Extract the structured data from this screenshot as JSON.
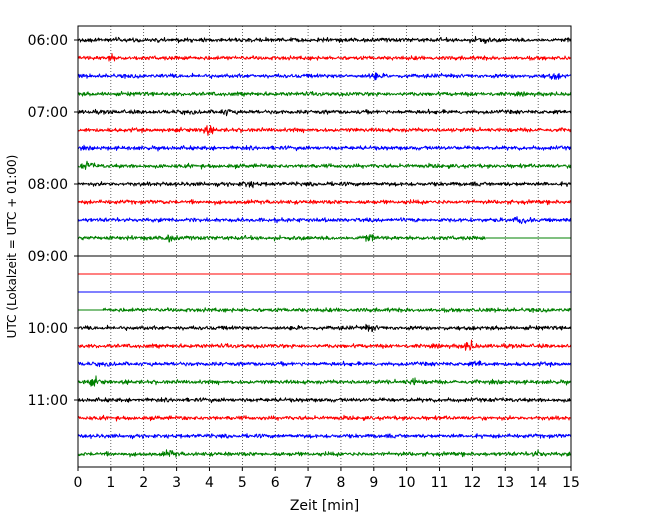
{
  "chart_data": {
    "type": "line",
    "title": "",
    "xlabel": "Zeit  [min]",
    "ylabel": "UTC (Lokalzeit = UTC + 01:00)",
    "xlim": [
      0,
      15
    ],
    "x_ticks": [
      0,
      1,
      2,
      3,
      4,
      5,
      6,
      7,
      8,
      9,
      10,
      11,
      12,
      13,
      14,
      15
    ],
    "x_tick_labels": [
      "0",
      "1",
      "2",
      "3",
      "4",
      "5",
      "6",
      "7",
      "8",
      "9",
      "10",
      "11",
      "12",
      "13",
      "14",
      "15"
    ],
    "y_tick_labels": [
      "06:00",
      "07:00",
      "08:00",
      "09:00",
      "10:00",
      "11:00"
    ],
    "vertical_grid": true,
    "trace_interval_min": 15,
    "color_cycle": [
      "#000000",
      "#ff0000",
      "#0000ff",
      "#008000"
    ],
    "traces": [
      {
        "start": "06:00",
        "color": "#000000",
        "data_from_min": 0,
        "data_to_min": 15,
        "events": [
          {
            "t": 12.3,
            "amp": 1.2
          }
        ]
      },
      {
        "start": "06:15",
        "color": "#ff0000",
        "data_from_min": 0,
        "data_to_min": 15,
        "events": [
          {
            "t": 1.0,
            "amp": 1.1
          }
        ]
      },
      {
        "start": "06:30",
        "color": "#0000ff",
        "data_from_min": 0,
        "data_to_min": 15,
        "events": [
          {
            "t": 9.0,
            "amp": 1.1
          },
          {
            "t": 14.5,
            "amp": 1.0
          }
        ]
      },
      {
        "start": "06:45",
        "color": "#008000",
        "data_from_min": 0,
        "data_to_min": 15,
        "events": []
      },
      {
        "start": "07:00",
        "color": "#000000",
        "data_from_min": 0,
        "data_to_min": 15,
        "events": [
          {
            "t": 4.5,
            "amp": 1.0
          }
        ]
      },
      {
        "start": "07:15",
        "color": "#ff0000",
        "data_from_min": 0,
        "data_to_min": 15,
        "events": [
          {
            "t": 3.9,
            "amp": 1.8
          }
        ]
      },
      {
        "start": "07:30",
        "color": "#0000ff",
        "data_from_min": 0,
        "data_to_min": 15,
        "events": []
      },
      {
        "start": "07:45",
        "color": "#008000",
        "data_from_min": 0,
        "data_to_min": 15,
        "events": [
          {
            "t": 0.3,
            "amp": 1.3
          }
        ]
      },
      {
        "start": "08:00",
        "color": "#000000",
        "data_from_min": 0,
        "data_to_min": 15,
        "events": [
          {
            "t": 5.2,
            "amp": 1.1
          }
        ]
      },
      {
        "start": "08:15",
        "color": "#ff0000",
        "data_from_min": 0,
        "data_to_min": 15,
        "events": []
      },
      {
        "start": "08:30",
        "color": "#0000ff",
        "data_from_min": 0,
        "data_to_min": 15,
        "events": [
          {
            "t": 13.5,
            "amp": 1.3
          }
        ]
      },
      {
        "start": "08:45",
        "color": "#008000",
        "data_from_min": 0,
        "data_to_min": 12.4,
        "events": [
          {
            "t": 2.8,
            "amp": 1.1
          },
          {
            "t": 8.8,
            "amp": 1.3
          }
        ]
      },
      {
        "start": "09:00",
        "color": "#000000",
        "data_from_min": 15,
        "data_to_min": 15,
        "events": []
      },
      {
        "start": "09:15",
        "color": "#ff0000",
        "data_from_min": 15,
        "data_to_min": 15,
        "events": []
      },
      {
        "start": "09:30",
        "color": "#0000ff",
        "data_from_min": 15,
        "data_to_min": 15,
        "events": []
      },
      {
        "start": "09:45",
        "color": "#008000",
        "data_from_min": 0.75,
        "data_to_min": 15,
        "events": []
      },
      {
        "start": "10:00",
        "color": "#000000",
        "data_from_min": 0,
        "data_to_min": 15,
        "events": [
          {
            "t": 8.9,
            "amp": 1.1
          }
        ]
      },
      {
        "start": "10:15",
        "color": "#ff0000",
        "data_from_min": 0,
        "data_to_min": 15,
        "events": [
          {
            "t": 11.9,
            "amp": 2.0
          }
        ]
      },
      {
        "start": "10:30",
        "color": "#0000ff",
        "data_from_min": 0,
        "data_to_min": 15,
        "events": [
          {
            "t": 12.2,
            "amp": 1.0
          }
        ]
      },
      {
        "start": "10:45",
        "color": "#008000",
        "data_from_min": 0,
        "data_to_min": 15,
        "events": [
          {
            "t": 0.5,
            "amp": 1.3
          },
          {
            "t": 10.2,
            "amp": 1.3
          }
        ]
      },
      {
        "start": "11:00",
        "color": "#000000",
        "data_from_min": 0,
        "data_to_min": 15,
        "events": []
      },
      {
        "start": "11:15",
        "color": "#ff0000",
        "data_from_min": 0,
        "data_to_min": 15,
        "events": []
      },
      {
        "start": "11:30",
        "color": "#0000ff",
        "data_from_min": 0,
        "data_to_min": 15,
        "events": []
      },
      {
        "start": "11:45",
        "color": "#008000",
        "data_from_min": 0,
        "data_to_min": 15,
        "events": [
          {
            "t": 2.8,
            "amp": 1.2
          },
          {
            "t": 14.0,
            "amp": 1.0
          }
        ]
      }
    ]
  }
}
